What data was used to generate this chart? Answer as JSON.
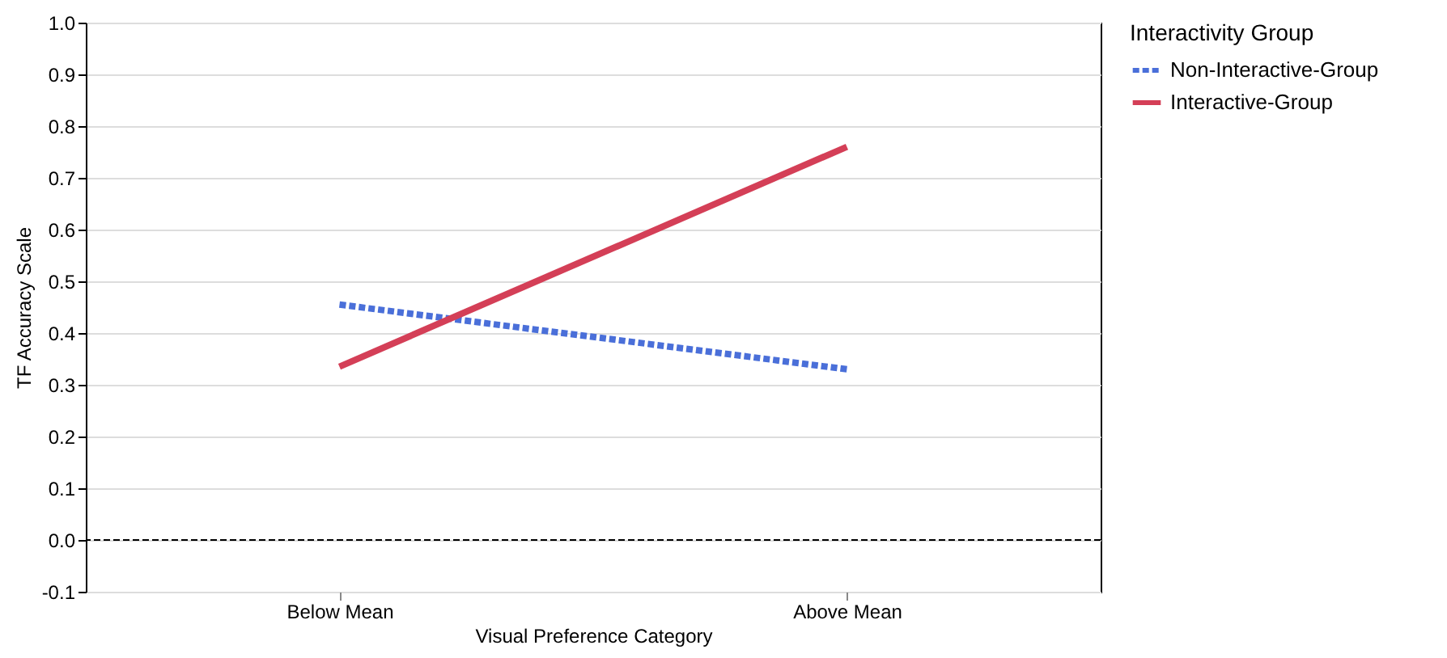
{
  "chart_data": {
    "type": "line",
    "xlabel": "Visual Preference Category",
    "ylabel": "TF Accuracy Scale",
    "legend_title": "Interactivity Group",
    "categories": [
      "Below Mean",
      "Above Mean"
    ],
    "series": [
      {
        "name": "Non-Interactive-Group",
        "color": "#4a6fd9",
        "values": [
          0.455,
          0.33
        ],
        "line_style": "dashed"
      },
      {
        "name": "Interactive-Group",
        "color": "#d43f57",
        "values": [
          0.335,
          0.76
        ],
        "line_style": "solid"
      }
    ],
    "ylim": [
      -0.1,
      1.0
    ],
    "yticks": [
      -0.1,
      {
        "value": 0,
        "label": "0.0"
      },
      0.1,
      0.2,
      0.3,
      0.4,
      0.5,
      0.6,
      0.7,
      0.8,
      0.9,
      {
        "value": 1,
        "label": "1.0"
      }
    ],
    "grid": "y",
    "legend": "top right",
    "ref_lines": [
      {
        "axis": "y",
        "value": 0,
        "label": null,
        "color": "#000000",
        "line_style": "dashed"
      }
    ]
  }
}
